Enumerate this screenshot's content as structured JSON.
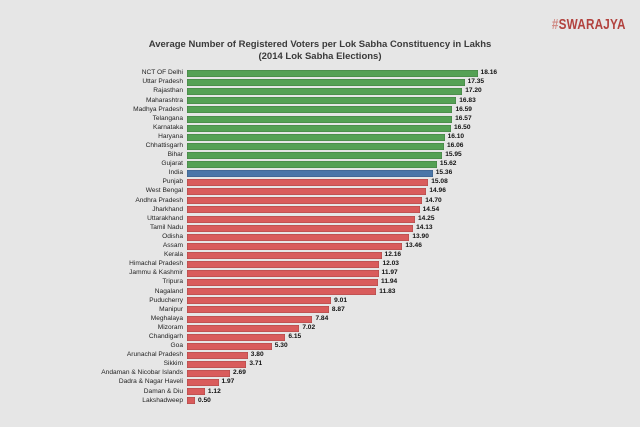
{
  "logo": {
    "hash": "#",
    "name": "SWARAJYA"
  },
  "title": {
    "line1": "Average Number of Registered Voters per Lok Sabha Constituency in Lakhs",
    "line2": "(2014 Lok Sabha Elections)"
  },
  "chart_data": {
    "type": "bar",
    "orientation": "horizontal",
    "title": "Average Number of Registered Voters per Lok Sabha Constituency in Lakhs",
    "subtitle": "(2014 Lok Sabha Elections)",
    "xlabel": "",
    "ylabel": "",
    "unit": "Lakhs",
    "xlim": [
      0,
      18.5
    ],
    "grid": false,
    "legend": false,
    "value_label_format": "2-decimals",
    "categories": [
      "NCT OF Delhi",
      "Uttar Pradesh",
      "Rajasthan",
      "Maharashtra",
      "Madhya Pradesh",
      "Telangana",
      "Karnataka",
      "Haryana",
      "Chhattisgarh",
      "Bihar",
      "Gujarat",
      "India",
      "Punjab",
      "West Bengal",
      "Andhra Pradesh",
      "Jharkhand",
      "Uttarakhand",
      "Tamil Nadu",
      "Odisha",
      "Assam",
      "Kerala",
      "Himachal Pradesh",
      "Jammu & Kashmir",
      "Tripura",
      "Nagaland",
      "Puducherry",
      "Manipur",
      "Meghalaya",
      "Mizoram",
      "Chandigarh",
      "Goa",
      "Arunachal Pradesh",
      "Sikkim",
      "Andaman & Nicobar Islands",
      "Dadra & Nagar Haveli",
      "Daman & Diu",
      "Lakshadweep"
    ],
    "values": [
      18.16,
      17.35,
      17.2,
      16.83,
      16.59,
      16.57,
      16.5,
      16.1,
      16.06,
      15.95,
      15.62,
      15.36,
      15.08,
      14.96,
      14.7,
      14.54,
      14.25,
      14.13,
      13.9,
      13.46,
      12.16,
      12.03,
      11.97,
      11.94,
      11.83,
      9.01,
      8.87,
      7.84,
      7.02,
      6.15,
      5.3,
      3.8,
      3.71,
      2.69,
      1.97,
      1.12,
      0.5
    ],
    "groups": [
      "above",
      "above",
      "above",
      "above",
      "above",
      "above",
      "above",
      "above",
      "above",
      "above",
      "above",
      "india",
      "below",
      "below",
      "below",
      "below",
      "below",
      "below",
      "below",
      "below",
      "below",
      "below",
      "below",
      "below",
      "below",
      "below",
      "below",
      "below",
      "below",
      "below",
      "below",
      "below",
      "below",
      "below",
      "below",
      "below",
      "below"
    ],
    "colors": {
      "above": "#55a155",
      "india": "#4a76a8",
      "below": "#d95c5c"
    },
    "background": "#e6e6e6"
  }
}
